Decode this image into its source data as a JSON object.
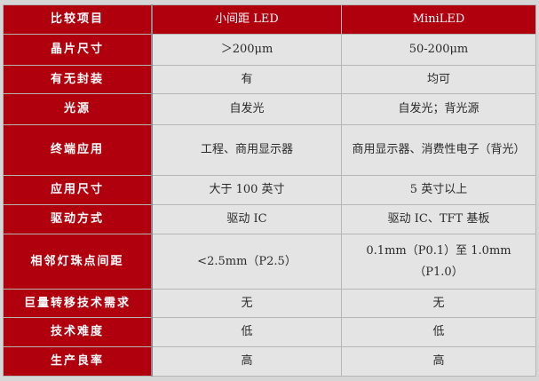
{
  "header": [
    "比较项目",
    "小间距 LED",
    "MiniLED"
  ],
  "rows": [
    [
      "晶片尺寸",
      "＞200μm",
      "50-200μm"
    ],
    [
      "有无封装",
      "有",
      "均可"
    ],
    [
      "光源",
      "自发光",
      "自发光；背光源"
    ],
    [
      "终端应用",
      "工程、商用显示器",
      "商用显示器、消费性电子（背光）"
    ],
    [
      "应用尺寸",
      "大于 100 英寸",
      "5 英寸以上"
    ],
    [
      "驱动方式",
      "驱动 IC",
      "驱动 IC、TFT 基板"
    ],
    [
      "相邻灯珠点间距",
      "<2.5mm（P2.5）",
      "0.1mm（P0.1）至 1.0mm（P1.0）"
    ],
    [
      "巨量转移技术需求",
      "无",
      "无"
    ],
    [
      "技术难度",
      "低",
      "低"
    ],
    [
      "生产良率",
      "高",
      "高"
    ]
  ],
  "colors": {
    "header_red": "#b0000d",
    "cell_gray": "#e4e4e4"
  }
}
